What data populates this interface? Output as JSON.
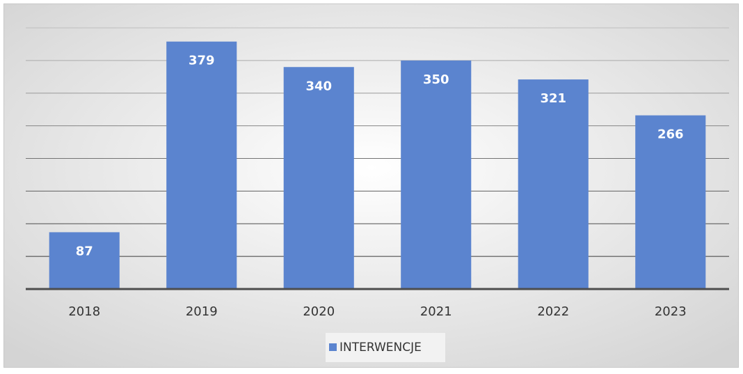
{
  "chart_data": {
    "type": "bar",
    "categories": [
      "2018",
      "2019",
      "2020",
      "2021",
      "2022",
      "2023"
    ],
    "series": [
      {
        "name": "INTERWENCJE",
        "color": "#5b84cf",
        "values": [
          87,
          379,
          340,
          350,
          321,
          266
        ]
      }
    ],
    "ylim": [
      0,
      400
    ],
    "yticks": [
      0,
      50,
      100,
      150,
      200,
      250,
      300,
      350,
      400
    ],
    "grid": true,
    "legend": "bottom"
  }
}
